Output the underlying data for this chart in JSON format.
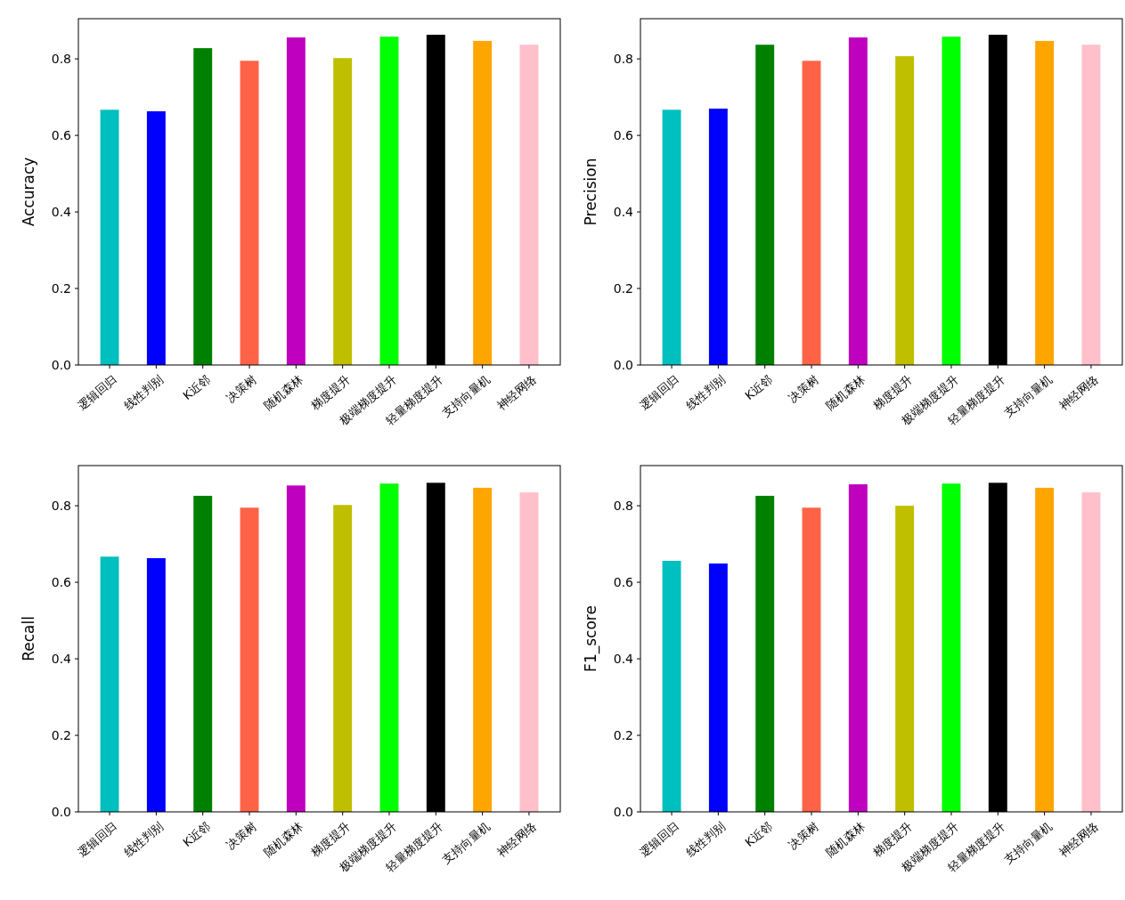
{
  "chart_data": [
    {
      "type": "bar",
      "ylabel": "Accuracy",
      "categories": [
        "逻辑回归",
        "线性判别",
        "K近邻",
        "决策树",
        "随机森林",
        "梯度提升",
        "极端梯度提升",
        "轻量梯度提升",
        "支持向量机",
        "神经网络"
      ],
      "values": [
        0.667,
        0.663,
        0.828,
        0.795,
        0.856,
        0.802,
        0.858,
        0.863,
        0.847,
        0.837
      ],
      "colors": [
        "#00bfbf",
        "#0000ff",
        "#008000",
        "#ff6347",
        "#bf00bf",
        "#bfbf00",
        "#00ff00",
        "#000000",
        "#ffa500",
        "#ffc0cb"
      ],
      "ylim": [
        0,
        0.905
      ],
      "yticks": [
        {
          "value": 0,
          "label": "0.0"
        },
        {
          "value": 0.2,
          "label": "0.2"
        },
        {
          "value": 0.4,
          "label": "0.4"
        },
        {
          "value": 0.6,
          "label": "0.6"
        },
        {
          "value": 0.8,
          "label": "0.8"
        }
      ]
    },
    {
      "type": "bar",
      "ylabel": "Precision",
      "categories": [
        "逻辑回归",
        "线性判别",
        "K近邻",
        "决策树",
        "随机森林",
        "梯度提升",
        "极端梯度提升",
        "轻量梯度提升",
        "支持向量机",
        "神经网络"
      ],
      "values": [
        0.667,
        0.67,
        0.837,
        0.795,
        0.856,
        0.807,
        0.858,
        0.863,
        0.847,
        0.837
      ],
      "colors": [
        "#00bfbf",
        "#0000ff",
        "#008000",
        "#ff6347",
        "#bf00bf",
        "#bfbf00",
        "#00ff00",
        "#000000",
        "#ffa500",
        "#ffc0cb"
      ],
      "ylim": [
        0,
        0.905
      ],
      "yticks": [
        {
          "value": 0,
          "label": "0.0"
        },
        {
          "value": 0.2,
          "label": "0.2"
        },
        {
          "value": 0.4,
          "label": "0.4"
        },
        {
          "value": 0.6,
          "label": "0.6"
        },
        {
          "value": 0.8,
          "label": "0.8"
        }
      ]
    },
    {
      "type": "bar",
      "ylabel": "Recall",
      "categories": [
        "逻辑回归",
        "线性判别",
        "K近邻",
        "决策树",
        "随机森林",
        "梯度提升",
        "极端梯度提升",
        "轻量梯度提升",
        "支持向量机",
        "神经网络"
      ],
      "values": [
        0.667,
        0.663,
        0.826,
        0.795,
        0.853,
        0.802,
        0.858,
        0.86,
        0.847,
        0.835
      ],
      "colors": [
        "#00bfbf",
        "#0000ff",
        "#008000",
        "#ff6347",
        "#bf00bf",
        "#bfbf00",
        "#00ff00",
        "#000000",
        "#ffa500",
        "#ffc0cb"
      ],
      "ylim": [
        0,
        0.905
      ],
      "yticks": [
        {
          "value": 0,
          "label": "0.0"
        },
        {
          "value": 0.2,
          "label": "0.2"
        },
        {
          "value": 0.4,
          "label": "0.4"
        },
        {
          "value": 0.6,
          "label": "0.6"
        },
        {
          "value": 0.8,
          "label": "0.8"
        }
      ]
    },
    {
      "type": "bar",
      "ylabel": "F1_score",
      "categories": [
        "逻辑回归",
        "线性判别",
        "K近邻",
        "决策树",
        "随机森林",
        "梯度提升",
        "极端梯度提升",
        "轻量梯度提升",
        "支持向量机",
        "神经网络"
      ],
      "values": [
        0.656,
        0.649,
        0.826,
        0.795,
        0.856,
        0.8,
        0.858,
        0.86,
        0.847,
        0.835
      ],
      "colors": [
        "#00bfbf",
        "#0000ff",
        "#008000",
        "#ff6347",
        "#bf00bf",
        "#bfbf00",
        "#00ff00",
        "#000000",
        "#ffa500",
        "#ffc0cb"
      ],
      "ylim": [
        0,
        0.905
      ],
      "yticks": [
        {
          "value": 0,
          "label": "0.0"
        },
        {
          "value": 0.2,
          "label": "0.2"
        },
        {
          "value": 0.4,
          "label": "0.4"
        },
        {
          "value": 0.6,
          "label": "0.6"
        },
        {
          "value": 0.8,
          "label": "0.8"
        }
      ]
    }
  ]
}
